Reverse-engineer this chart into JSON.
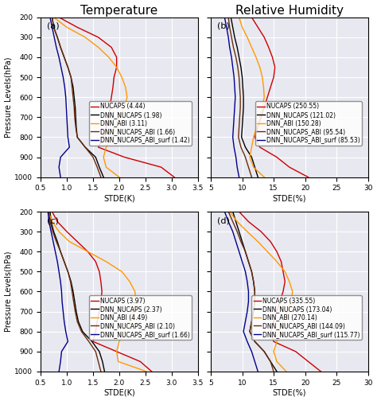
{
  "title_top_left": "Temperature",
  "title_top_right": "Relative Humidity",
  "panels": {
    "a": {
      "label": "(a)",
      "xlabel": "STDE(K)",
      "xlim": [
        0.5,
        3.5
      ],
      "xticks": [
        0.5,
        1.0,
        1.5,
        2.0,
        2.5,
        3.0,
        3.5
      ],
      "xtick_labels": [
        "0.5",
        "1.0",
        "1.5",
        "2.0",
        "2.5",
        "3.0",
        "3.5"
      ],
      "legend_entries": [
        "NUCAPS (4.44)",
        "DNN_NUCAPS (1.98)",
        "DNN_ABI (3.11)",
        "DNN_NUCAPS_ABI (1.66)",
        "DNN_NUCAPS_ABI_surf (1.42)"
      ],
      "colors": [
        "#cc0000",
        "#000000",
        "#ff9900",
        "#6B2D0A",
        "#00008B"
      ],
      "profiles": {
        "nucaps": [
          0.85,
          1.2,
          1.6,
          1.85,
          1.95,
          1.95,
          1.9,
          1.88,
          1.85,
          1.82,
          1.8,
          1.75,
          1.7,
          1.6,
          2.1,
          2.8,
          3.05
        ],
        "dnn_nucaps": [
          0.72,
          0.75,
          0.82,
          0.88,
          0.95,
          1.02,
          1.08,
          1.12,
          1.14,
          1.16,
          1.17,
          1.18,
          1.2,
          1.35,
          1.55,
          1.62,
          1.7
        ],
        "dnn_abi": [
          0.75,
          1.0,
          1.35,
          1.6,
          1.8,
          1.95,
          2.05,
          2.12,
          2.15,
          2.1,
          2.0,
          1.92,
          1.85,
          1.75,
          1.7,
          1.75,
          2.0
        ],
        "dnn_nucaps_abi": [
          0.72,
          0.75,
          0.82,
          0.88,
          0.95,
          1.02,
          1.08,
          1.1,
          1.12,
          1.14,
          1.15,
          1.17,
          1.2,
          1.35,
          1.5,
          1.58,
          1.65
        ],
        "dnn_surf": [
          0.68,
          0.72,
          0.76,
          0.8,
          0.85,
          0.89,
          0.93,
          0.96,
          0.98,
          0.99,
          1.0,
          1.01,
          1.02,
          1.05,
          0.88,
          0.85,
          0.88
        ]
      }
    },
    "b": {
      "label": "(b)",
      "xlabel": "STDE(%)",
      "xlim": [
        5,
        30
      ],
      "xticks": [
        5,
        10,
        15,
        20,
        25,
        30
      ],
      "xtick_labels": [
        "5",
        "10",
        "15",
        "20",
        "25",
        "30"
      ],
      "legend_entries": [
        "NUCAPS (250.55)",
        "DNN_NUCAPS (121.02)",
        "DNN_ABI (150.28)",
        "DNN_NUCAPS_ABI (95.54)",
        "DNN_NUCAPS_ABI_surf (85.53)"
      ],
      "colors": [
        "#cc0000",
        "#000000",
        "#ff9900",
        "#6B2D0A",
        "#00008B"
      ],
      "profiles": {
        "nucaps": [
          11.5,
          12.5,
          13.5,
          14.2,
          14.8,
          15.2,
          15.0,
          14.5,
          14.0,
          13.5,
          13.0,
          12.5,
          12.0,
          12.8,
          15.5,
          17.5,
          20.5
        ],
        "dnn_nucaps": [
          8.2,
          8.5,
          8.8,
          9.2,
          9.5,
          9.8,
          10.0,
          10.1,
          10.2,
          10.2,
          10.1,
          10.0,
          9.9,
          10.5,
          11.5,
          12.0,
          12.5
        ],
        "dnn_abi": [
          9.5,
          10.0,
          10.8,
          11.5,
          12.2,
          12.8,
          13.2,
          13.4,
          13.5,
          13.2,
          12.8,
          12.3,
          11.8,
          11.5,
          11.2,
          11.8,
          13.5
        ],
        "dnn_nucaps_abi": [
          7.8,
          8.0,
          8.3,
          8.6,
          9.0,
          9.3,
          9.5,
          9.6,
          9.7,
          9.7,
          9.6,
          9.5,
          9.4,
          9.8,
          10.5,
          11.0,
          11.5
        ],
        "dnn_surf": [
          7.2,
          7.5,
          7.8,
          8.0,
          8.3,
          8.5,
          8.7,
          8.8,
          8.9,
          8.8,
          8.7,
          8.6,
          8.5,
          8.7,
          9.0,
          9.2,
          9.5
        ]
      }
    },
    "c": {
      "label": "(c)",
      "xlabel": "STDE(K)",
      "xlim": [
        0.5,
        3.5
      ],
      "xticks": [
        0.5,
        1.0,
        1.5,
        2.0,
        2.5,
        3.0,
        3.5
      ],
      "xtick_labels": [
        "0.5",
        "1.0",
        "1.5",
        "2.0",
        "2.5",
        "3.0",
        "3.5"
      ],
      "legend_entries": [
        "NUCAPS (3.97)",
        "DNN_NUCAPS (2.37)",
        "DNN_ABI (4.49)",
        "DNN_NUCAPS_ABI (2.10)",
        "DNN_NUCAPS_ABI_surf (1.66)"
      ],
      "colors": [
        "#cc0000",
        "#000000",
        "#ff9900",
        "#6B2D0A",
        "#00008B"
      ],
      "profiles": {
        "nucaps": [
          0.72,
          0.82,
          1.0,
          1.2,
          1.4,
          1.55,
          1.62,
          1.65,
          1.67,
          1.65,
          1.62,
          1.58,
          1.55,
          1.5,
          1.95,
          2.4,
          2.62
        ],
        "dnn_nucaps": [
          0.68,
          0.7,
          0.75,
          0.82,
          0.88,
          0.95,
          1.02,
          1.08,
          1.12,
          1.15,
          1.18,
          1.22,
          1.3,
          1.48,
          1.62,
          1.68,
          1.72
        ],
        "dnn_abi": [
          0.65,
          0.72,
          0.85,
          1.05,
          1.4,
          1.75,
          2.05,
          2.2,
          2.3,
          2.32,
          2.28,
          2.2,
          2.1,
          2.0,
          1.95,
          1.98,
          2.52
        ],
        "dnn_nucaps_abi": [
          0.66,
          0.68,
          0.73,
          0.8,
          0.88,
          0.95,
          1.02,
          1.07,
          1.1,
          1.13,
          1.16,
          1.2,
          1.28,
          1.42,
          1.55,
          1.6,
          1.65
        ],
        "dnn_surf": [
          0.64,
          0.66,
          0.7,
          0.74,
          0.78,
          0.82,
          0.85,
          0.88,
          0.9,
          0.91,
          0.93,
          0.95,
          0.98,
          1.02,
          0.9,
          0.88,
          0.85
        ]
      }
    },
    "d": {
      "label": "(d)",
      "xlabel": "STDE(%)",
      "xlim": [
        5,
        30
      ],
      "xticks": [
        5,
        10,
        15,
        20,
        25,
        30
      ],
      "xtick_labels": [
        "5",
        "10",
        "15",
        "20",
        "25",
        "30"
      ],
      "legend_entries": [
        "NUCAPS (335.55)",
        "DNN_NUCAPS (173.04)",
        "DNN_ABI (270.14)",
        "DNN_NUCAPS_ABI (144.09)",
        "DNN_NUCAPS_ABI_surf (115.77)"
      ],
      "colors": [
        "#cc0000",
        "#000000",
        "#ff9900",
        "#6B2D0A",
        "#00008B"
      ],
      "profiles": {
        "nucaps": [
          9.5,
          11.0,
          13.0,
          14.5,
          15.5,
          16.2,
          16.5,
          16.8,
          16.5,
          16.0,
          15.5,
          15.0,
          14.5,
          15.0,
          18.5,
          20.5,
          22.5
        ],
        "dnn_nucaps": [
          8.5,
          9.0,
          9.5,
          10.0,
          10.5,
          11.0,
          11.5,
          11.8,
          12.0,
          12.0,
          11.8,
          11.5,
          11.2,
          12.0,
          13.5,
          14.5,
          15.5
        ],
        "dnn_abi": [
          8.0,
          9.2,
          10.8,
          12.5,
          14.0,
          15.5,
          16.8,
          17.5,
          18.0,
          17.8,
          17.2,
          16.5,
          15.8,
          15.5,
          15.0,
          15.5,
          17.0
        ],
        "dnn_nucaps_abi": [
          7.8,
          8.5,
          9.2,
          9.8,
          10.5,
          11.0,
          11.5,
          11.8,
          12.0,
          12.0,
          11.8,
          11.5,
          11.2,
          12.0,
          13.5,
          14.5,
          15.0
        ],
        "dnn_surf": [
          7.2,
          7.8,
          8.5,
          9.0,
          9.5,
          10.0,
          10.5,
          10.8,
          11.0,
          11.0,
          10.8,
          10.5,
          10.2,
          10.8,
          11.5,
          12.0,
          12.5
        ]
      }
    }
  },
  "pressure_levels": [
    200,
    250,
    300,
    350,
    400,
    450,
    500,
    550,
    600,
    650,
    700,
    750,
    800,
    850,
    900,
    950,
    1000
  ],
  "ylabel": "Pressure Levels(hPa)",
  "ylim_top": 200,
  "ylim_bottom": 1000,
  "yticks": [
    200,
    300,
    400,
    500,
    600,
    700,
    800,
    900,
    1000
  ],
  "background_color": "#e8e8f0",
  "grid_color": "#ffffff",
  "title_fontsize": 11,
  "label_fontsize": 7,
  "legend_fontsize": 5.5,
  "tick_fontsize": 6.5
}
